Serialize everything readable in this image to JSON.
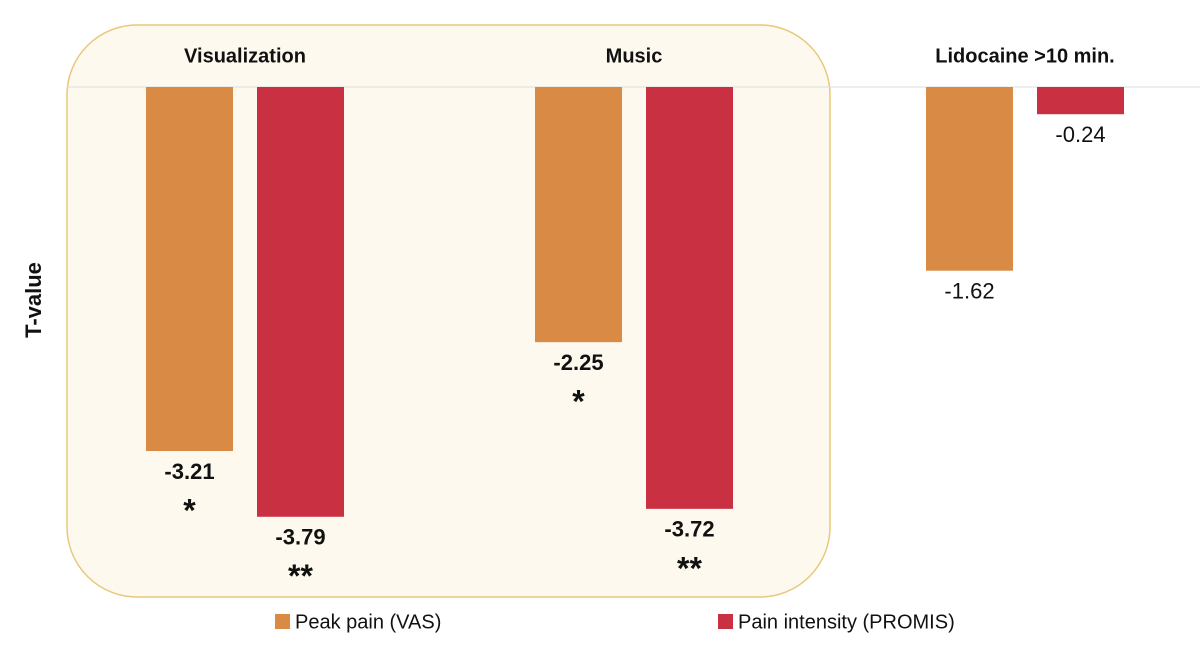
{
  "chart_data": {
    "type": "bar",
    "ylabel": "T-value",
    "categories": [
      "Visualization",
      "Music",
      "Lidocaine >10 min."
    ],
    "series": [
      {
        "name": "Peak pain (VAS)",
        "color": "#d98b45",
        "values": [
          -3.21,
          -2.25,
          -1.62
        ],
        "significance": [
          "*",
          "*",
          null
        ]
      },
      {
        "name": "Pain intensity (PROMIS)",
        "color": "#c93042",
        "values": [
          -3.79,
          -3.72,
          -0.24
        ],
        "significance": [
          "**",
          "**",
          null
        ]
      }
    ],
    "ylim": [
      -5,
      0
    ]
  }
}
